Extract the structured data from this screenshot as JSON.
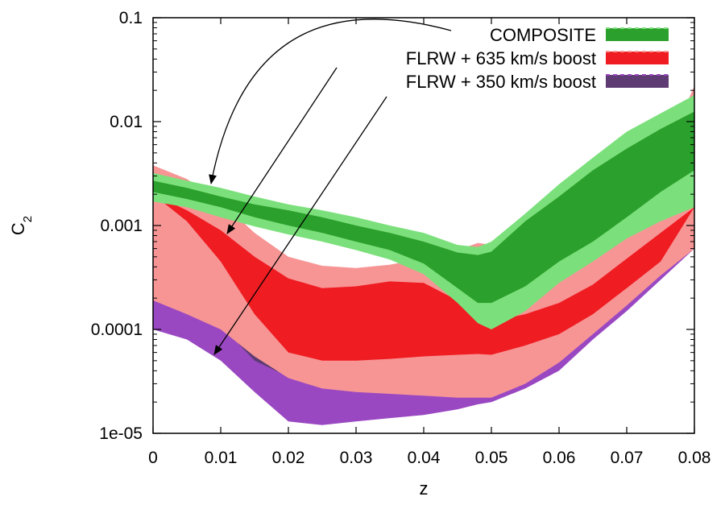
{
  "chart_data": {
    "type": "area",
    "xlabel": "z",
    "ylabel": "C",
    "ylabel_subscript": "2",
    "xlim": [
      0,
      0.08
    ],
    "ylim": [
      1e-05,
      0.1
    ],
    "yscale": "log",
    "grid": false,
    "legend_position": "top-right",
    "x_ticks": [
      {
        "value": 0,
        "label": "0"
      },
      {
        "value": 0.01,
        "label": "0.01"
      },
      {
        "value": 0.02,
        "label": "0.02"
      },
      {
        "value": 0.03,
        "label": "0.03"
      },
      {
        "value": 0.04,
        "label": "0.04"
      },
      {
        "value": 0.05,
        "label": "0.05"
      },
      {
        "value": 0.06,
        "label": "0.06"
      },
      {
        "value": 0.07,
        "label": "0.07"
      },
      {
        "value": 0.08,
        "label": "0.08"
      }
    ],
    "y_ticks": [
      {
        "value": 1e-05,
        "label": "1e-05"
      },
      {
        "value": 0.0001,
        "label": "0.0001"
      },
      {
        "value": 0.001,
        "label": "0.001"
      },
      {
        "value": 0.01,
        "label": "0.01"
      },
      {
        "value": 0.1,
        "label": "0.1"
      }
    ],
    "x": [
      0,
      0.005,
      0.01,
      0.015,
      0.02,
      0.025,
      0.03,
      0.035,
      0.04,
      0.045,
      0.048,
      0.05,
      0.055,
      0.06,
      0.065,
      0.07,
      0.075,
      0.08
    ],
    "series": [
      {
        "name": "FLRW + 350 km/s boost",
        "fill_outer": "#9a48c2",
        "fill_inner": "#5e3b73",
        "outer_upper": [
          0.0015,
          0.0012,
          0.0009,
          0.00065,
          0.00045,
          0.00038,
          0.00038,
          0.0004,
          0.00045,
          0.00055,
          0.00065,
          0.0006,
          0.0004,
          0.0003,
          0.0005,
          0.0009,
          0.0015,
          0.02
        ],
        "outer_lower": [
          0.0001,
          8e-05,
          5e-05,
          2.5e-05,
          1.3e-05,
          1.2e-05,
          1.3e-05,
          1.4e-05,
          1.5e-05,
          1.7e-05,
          1.9e-05,
          2e-05,
          2.7e-05,
          4e-05,
          8e-05,
          0.00015,
          0.0003,
          0.0006
        ],
        "inner_upper": [
          0.00095,
          0.00075,
          0.00045,
          0.00018,
          7e-05,
          null,
          null,
          null,
          null,
          null,
          null,
          null,
          null,
          null,
          null,
          null,
          null,
          null
        ],
        "inner_lower": [
          0.00022,
          0.00017,
          0.00011,
          5e-05,
          3.5e-05,
          null,
          null,
          null,
          null,
          null,
          null,
          null,
          null,
          null,
          null,
          null,
          null,
          null
        ]
      },
      {
        "name": "FLRW + 635 km/s boost",
        "fill_outer": "#f79595",
        "fill_inner": "#ef1c22",
        "outer_upper": [
          0.0038,
          0.0028,
          0.0017,
          0.00085,
          0.0005,
          0.00041,
          0.00039,
          0.00042,
          0.00048,
          0.00058,
          0.00068,
          0.00065,
          0.0004,
          0.0003,
          0.00052,
          0.0012,
          0.004,
          0.022
        ],
        "outer_lower": [
          0.00019,
          0.00014,
          0.0001,
          5.5e-05,
          3.4e-05,
          2.7e-05,
          2.5e-05,
          2.4e-05,
          2.3e-05,
          2.2e-05,
          2.2e-05,
          2.2e-05,
          3e-05,
          4.8e-05,
          9e-05,
          0.00017,
          0.00033,
          0.0006
        ],
        "inner_upper": [
          0.002,
          0.0014,
          0.0009,
          0.0005,
          0.00031,
          0.00025,
          0.00026,
          0.00029,
          0.00028,
          0.00019,
          0.00014,
          0.00012,
          0.00014,
          0.00018,
          0.00027,
          0.00048,
          0.00085,
          0.0015
        ],
        "inner_lower": [
          0.002,
          0.0011,
          0.00045,
          0.00014,
          6e-05,
          5e-05,
          5e-05,
          5.2e-05,
          5.5e-05,
          5.7e-05,
          5.8e-05,
          5.7e-05,
          7e-05,
          9e-05,
          0.00014,
          0.00025,
          0.00045,
          0.0015
        ]
      },
      {
        "name": "COMPOSITE",
        "fill_outer": "#7be07b",
        "fill_inner": "#2ca02c",
        "outer_upper": [
          0.0032,
          0.0027,
          0.0023,
          0.0019,
          0.0016,
          0.0014,
          0.0012,
          0.001,
          0.00085,
          0.00065,
          0.00062,
          0.0007,
          0.0013,
          0.0025,
          0.0045,
          0.008,
          0.012,
          0.018
        ],
        "outer_lower": [
          0.0017,
          0.0015,
          0.0012,
          0.00098,
          0.00082,
          0.0007,
          0.00058,
          0.00047,
          0.00034,
          0.00018,
          0.000115,
          0.0001,
          0.00015,
          0.00028,
          0.00045,
          0.00075,
          0.0011,
          0.0015
        ],
        "inner_upper": [
          0.0027,
          0.0023,
          0.0019,
          0.0016,
          0.0014,
          0.0012,
          0.001,
          0.00085,
          0.0007,
          0.00055,
          0.00052,
          0.00056,
          0.0011,
          0.0019,
          0.0034,
          0.0055,
          0.0085,
          0.0125
        ],
        "inner_lower": [
          0.0021,
          0.0018,
          0.0015,
          0.0012,
          0.001,
          0.00085,
          0.0007,
          0.00058,
          0.00043,
          0.00025,
          0.00018,
          0.00018,
          0.00026,
          0.00045,
          0.0007,
          0.0012,
          0.0021,
          0.0034
        ]
      }
    ],
    "legend": [
      {
        "label": "COMPOSITE",
        "color": "#2ca02c",
        "dash": "#7be07b"
      },
      {
        "label": "FLRW + 635 km/s boost",
        "color": "#ef1c22",
        "dash": "#f79595"
      },
      {
        "label": "FLRW + 350 km/s boost",
        "color": "#5e3b73",
        "dash": "#9a48c2"
      }
    ]
  }
}
